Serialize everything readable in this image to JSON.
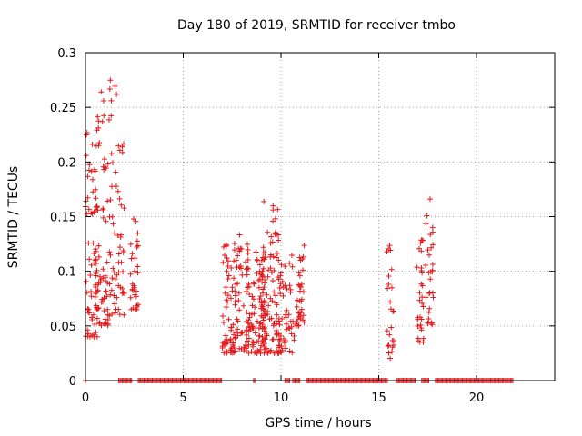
{
  "chart_data": {
    "type": "scatter",
    "title": "Day 180 of 2019, SRMTID for receiver tmbo",
    "xlabel": "GPS time / hours",
    "ylabel": "SRMTID / TECUs",
    "xlim": [
      0,
      24
    ],
    "ylim": [
      0,
      0.3
    ],
    "xticks": [
      0,
      5,
      10,
      15,
      20
    ],
    "xtick_labels": [
      "0",
      "5",
      "10",
      "15",
      "20"
    ],
    "yticks": [
      0,
      0.05,
      0.1,
      0.15,
      0.2,
      0.25,
      0.3
    ],
    "ytick_labels": [
      "0",
      "0.05",
      "0.1",
      "0.15",
      "0.2",
      "0.25",
      "0.3"
    ],
    "grid": true,
    "marker": "+",
    "color": "#e41a1c",
    "clusters": [
      {
        "x_range": [
          0.0,
          0.6
        ],
        "y_range": [
          0.04,
          0.23
        ],
        "count": 70
      },
      {
        "x_range": [
          0.5,
          1.6
        ],
        "y_range": [
          0.05,
          0.285
        ],
        "count": 95
      },
      {
        "x_range": [
          1.4,
          2.0
        ],
        "y_range": [
          0.06,
          0.22
        ],
        "count": 35
      },
      {
        "x_range": [
          2.3,
          2.7
        ],
        "y_range": [
          0.065,
          0.15
        ],
        "count": 30
      },
      {
        "x_range": [
          7.0,
          8.3
        ],
        "y_range": [
          0.025,
          0.135
        ],
        "count": 110
      },
      {
        "x_range": [
          8.2,
          9.2
        ],
        "y_range": [
          0.025,
          0.125
        ],
        "count": 110
      },
      {
        "x_range": [
          9.0,
          10.0
        ],
        "y_range": [
          0.025,
          0.165
        ],
        "count": 100
      },
      {
        "x_range": [
          9.9,
          10.7
        ],
        "y_range": [
          0.025,
          0.115
        ],
        "count": 45
      },
      {
        "x_range": [
          10.7,
          11.2
        ],
        "y_range": [
          0.05,
          0.125
        ],
        "count": 35
      },
      {
        "x_range": [
          15.4,
          15.8
        ],
        "y_range": [
          0.02,
          0.125
        ],
        "count": 25
      },
      {
        "x_range": [
          16.9,
          17.3
        ],
        "y_range": [
          0.035,
          0.13
        ],
        "count": 30
      },
      {
        "x_range": [
          17.4,
          17.8
        ],
        "y_range": [
          0.05,
          0.18
        ],
        "count": 30
      }
    ],
    "zero_segments": [
      [
        0.0,
        0.05
      ],
      [
        1.7,
        2.4
      ],
      [
        2.7,
        7.0
      ],
      [
        8.6,
        8.7
      ],
      [
        10.2,
        10.5
      ],
      [
        10.6,
        11.0
      ],
      [
        11.3,
        15.5
      ],
      [
        15.9,
        16.9
      ],
      [
        17.2,
        17.6
      ],
      [
        17.9,
        21.9
      ]
    ]
  }
}
